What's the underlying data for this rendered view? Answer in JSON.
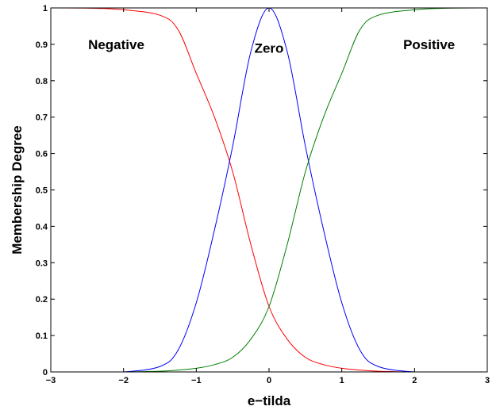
{
  "chart_data": {
    "type": "line",
    "title": "",
    "xlabel": "e−tilda",
    "ylabel": "Membership Degree",
    "xlim": [
      -3,
      3
    ],
    "ylim": [
      0,
      1
    ],
    "grid": false,
    "legend": "none",
    "x_ticks": [
      -3,
      -2,
      -1,
      0,
      1,
      2,
      3
    ],
    "x_tick_labels": [
      "−3",
      "−2",
      "−1",
      "0",
      "1",
      "2",
      "3"
    ],
    "y_ticks": [
      0,
      0.1,
      0.2,
      0.3,
      0.4,
      0.5,
      0.6,
      0.7,
      0.8,
      0.9,
      1
    ],
    "y_tick_labels": [
      "0",
      "0.1",
      "0.2",
      "0.3",
      "0.4",
      "0.5",
      "0.6",
      "0.7",
      "0.8",
      "0.9",
      "1"
    ],
    "x": [
      -3,
      -2.5,
      -2,
      -1.5,
      -1.25,
      -1,
      -0.75,
      -0.5,
      -0.25,
      0,
      0.25,
      0.5,
      0.75,
      1,
      1.25,
      1.5,
      2,
      2.5,
      3
    ],
    "series": [
      {
        "name": "Negative",
        "color": "#ff0000",
        "values": [
          1.0,
          0.9995,
          0.995,
          0.98,
          0.94,
          0.82,
          0.7,
          0.55,
          0.35,
          0.18,
          0.09,
          0.04,
          0.02,
          0.01,
          0.005,
          0.002,
          0.0,
          0.0,
          0.0
        ]
      },
      {
        "name": "Zero",
        "color": "#0000ff",
        "values": [
          0.0,
          0.0,
          0.0,
          0.015,
          0.06,
          0.19,
          0.39,
          0.62,
          0.88,
          1.0,
          0.88,
          0.62,
          0.39,
          0.19,
          0.06,
          0.015,
          0.0,
          0.0,
          0.0
        ]
      },
      {
        "name": "Positive",
        "color": "#008000",
        "values": [
          0.0,
          0.0,
          0.0,
          0.002,
          0.005,
          0.01,
          0.02,
          0.04,
          0.09,
          0.18,
          0.35,
          0.55,
          0.7,
          0.82,
          0.94,
          0.98,
          0.995,
          0.9995,
          1.0
        ]
      }
    ],
    "annotations": [
      {
        "text": "Negative",
        "x": -2.1,
        "y": 0.9
      },
      {
        "text": "Zero",
        "x": 0.0,
        "y": 0.89
      },
      {
        "text": "Positive",
        "x": 2.2,
        "y": 0.9
      }
    ]
  }
}
